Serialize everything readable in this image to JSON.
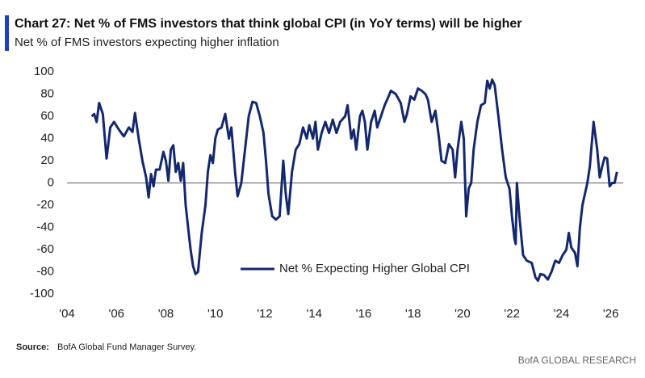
{
  "chart_data": {
    "type": "line",
    "title": "Chart 27: Net % of FMS investors that think global CPI (in YoY terms) will be higher",
    "subtitle": "Net % of FMS investors expecting higher inflation",
    "source_label": "Source:",
    "source_text": "BofA Global Fund Manager Survey.",
    "brand": "BofA GLOBAL RESEARCH",
    "legend": "bottom",
    "grid": false,
    "xlim": [
      2004,
      2026.5
    ],
    "ylim": [
      -100,
      100
    ],
    "xticks": [
      {
        "value": 2004,
        "label": "'04"
      },
      {
        "value": 2006,
        "label": "'06"
      },
      {
        "value": 2008,
        "label": "'08"
      },
      {
        "value": 2010,
        "label": "'10"
      },
      {
        "value": 2012,
        "label": "'12"
      },
      {
        "value": 2014,
        "label": "'14"
      },
      {
        "value": 2016,
        "label": "'16"
      },
      {
        "value": 2018,
        "label": "'18"
      },
      {
        "value": 2020,
        "label": "'20"
      },
      {
        "value": 2022,
        "label": "'22"
      },
      {
        "value": 2024,
        "label": "'24"
      },
      {
        "value": 2026,
        "label": "'26"
      }
    ],
    "yticks": [
      100,
      80,
      60,
      40,
      20,
      0,
      -20,
      -40,
      -60,
      -80,
      -100
    ],
    "x": [
      2005.0,
      2005.1,
      2005.2,
      2005.3,
      2005.45,
      2005.6,
      2005.75,
      2005.9,
      2006.1,
      2006.3,
      2006.5,
      2006.65,
      2006.75,
      2006.9,
      2007.05,
      2007.2,
      2007.3,
      2007.4,
      2007.5,
      2007.6,
      2007.75,
      2007.9,
      2008.0,
      2008.1,
      2008.2,
      2008.3,
      2008.4,
      2008.5,
      2008.6,
      2008.7,
      2008.8,
      2008.9,
      2009.0,
      2009.1,
      2009.2,
      2009.3,
      2009.45,
      2009.6,
      2009.7,
      2009.8,
      2009.9,
      2010.0,
      2010.1,
      2010.25,
      2010.4,
      2010.55,
      2010.65,
      2010.8,
      2010.9,
      2011.05,
      2011.2,
      2011.35,
      2011.5,
      2011.65,
      2011.8,
      2011.95,
      2012.05,
      2012.15,
      2012.3,
      2012.45,
      2012.6,
      2012.75,
      2012.85,
      2012.95,
      2013.1,
      2013.25,
      2013.4,
      2013.55,
      2013.7,
      2013.8,
      2013.95,
      2014.05,
      2014.15,
      2014.3,
      2014.45,
      2014.6,
      2014.75,
      2014.9,
      2015.05,
      2015.25,
      2015.35,
      2015.5,
      2015.6,
      2015.7,
      2015.85,
      2015.95,
      2016.05,
      2016.15,
      2016.3,
      2016.45,
      2016.55,
      2016.7,
      2016.85,
      2016.95,
      2017.1,
      2017.3,
      2017.5,
      2017.65,
      2017.75,
      2017.9,
      2018.05,
      2018.2,
      2018.35,
      2018.5,
      2018.6,
      2018.75,
      2018.9,
      2019.05,
      2019.15,
      2019.3,
      2019.45,
      2019.6,
      2019.7,
      2019.8,
      2019.95,
      2020.05,
      2020.15,
      2020.25,
      2020.35,
      2020.45,
      2020.6,
      2020.75,
      2020.9,
      2021.0,
      2021.1,
      2021.2,
      2021.3,
      2021.45,
      2021.6,
      2021.75,
      2021.9,
      2022.0,
      2022.1,
      2022.15,
      2022.2,
      2022.3,
      2022.45,
      2022.6,
      2022.8,
      2022.95,
      2023.05,
      2023.15,
      2023.3,
      2023.45,
      2023.6,
      2023.75,
      2023.9,
      2024.05,
      2024.2,
      2024.3,
      2024.4,
      2024.55,
      2024.65,
      2024.75,
      2024.85,
      2024.95,
      2025.05,
      2025.15,
      2025.3,
      2025.45,
      2025.55,
      2025.65,
      2025.75,
      2025.85,
      2025.95,
      2026.05,
      2026.15,
      2026.25
    ],
    "series": [
      {
        "name": "Net % Expecting Higher Global CPI",
        "color": "#14286e",
        "values": [
          60,
          62,
          55,
          72,
          62,
          22,
          50,
          55,
          48,
          42,
          50,
          46,
          63,
          40,
          20,
          5,
          -13,
          8,
          -3,
          12,
          12,
          28,
          20,
          2,
          30,
          34,
          10,
          18,
          2,
          18,
          -20,
          -40,
          -60,
          -75,
          -82,
          -80,
          -45,
          -20,
          10,
          25,
          18,
          40,
          48,
          50,
          62,
          40,
          50,
          10,
          -12,
          0,
          30,
          60,
          73,
          72,
          60,
          45,
          20,
          -10,
          -30,
          -33,
          -30,
          20,
          -10,
          -28,
          10,
          30,
          35,
          50,
          40,
          52,
          40,
          55,
          30,
          45,
          55,
          45,
          57,
          45,
          55,
          60,
          70,
          40,
          48,
          30,
          60,
          65,
          55,
          30,
          55,
          65,
          50,
          60,
          70,
          75,
          83,
          80,
          72,
          55,
          62,
          78,
          75,
          85,
          83,
          80,
          75,
          55,
          65,
          40,
          20,
          18,
          35,
          30,
          5,
          30,
          55,
          40,
          -30,
          -5,
          0,
          30,
          55,
          70,
          72,
          92,
          85,
          93,
          88,
          60,
          30,
          5,
          -5,
          -30,
          -50,
          -55,
          0,
          -30,
          -65,
          -70,
          -72,
          -85,
          -88,
          -82,
          -83,
          -87,
          -80,
          -70,
          -72,
          -65,
          -60,
          -45,
          -58,
          -63,
          -75,
          -40,
          -20,
          -10,
          0,
          15,
          55,
          30,
          5,
          15,
          23,
          22,
          -3,
          0,
          0,
          10
        ]
      }
    ]
  }
}
